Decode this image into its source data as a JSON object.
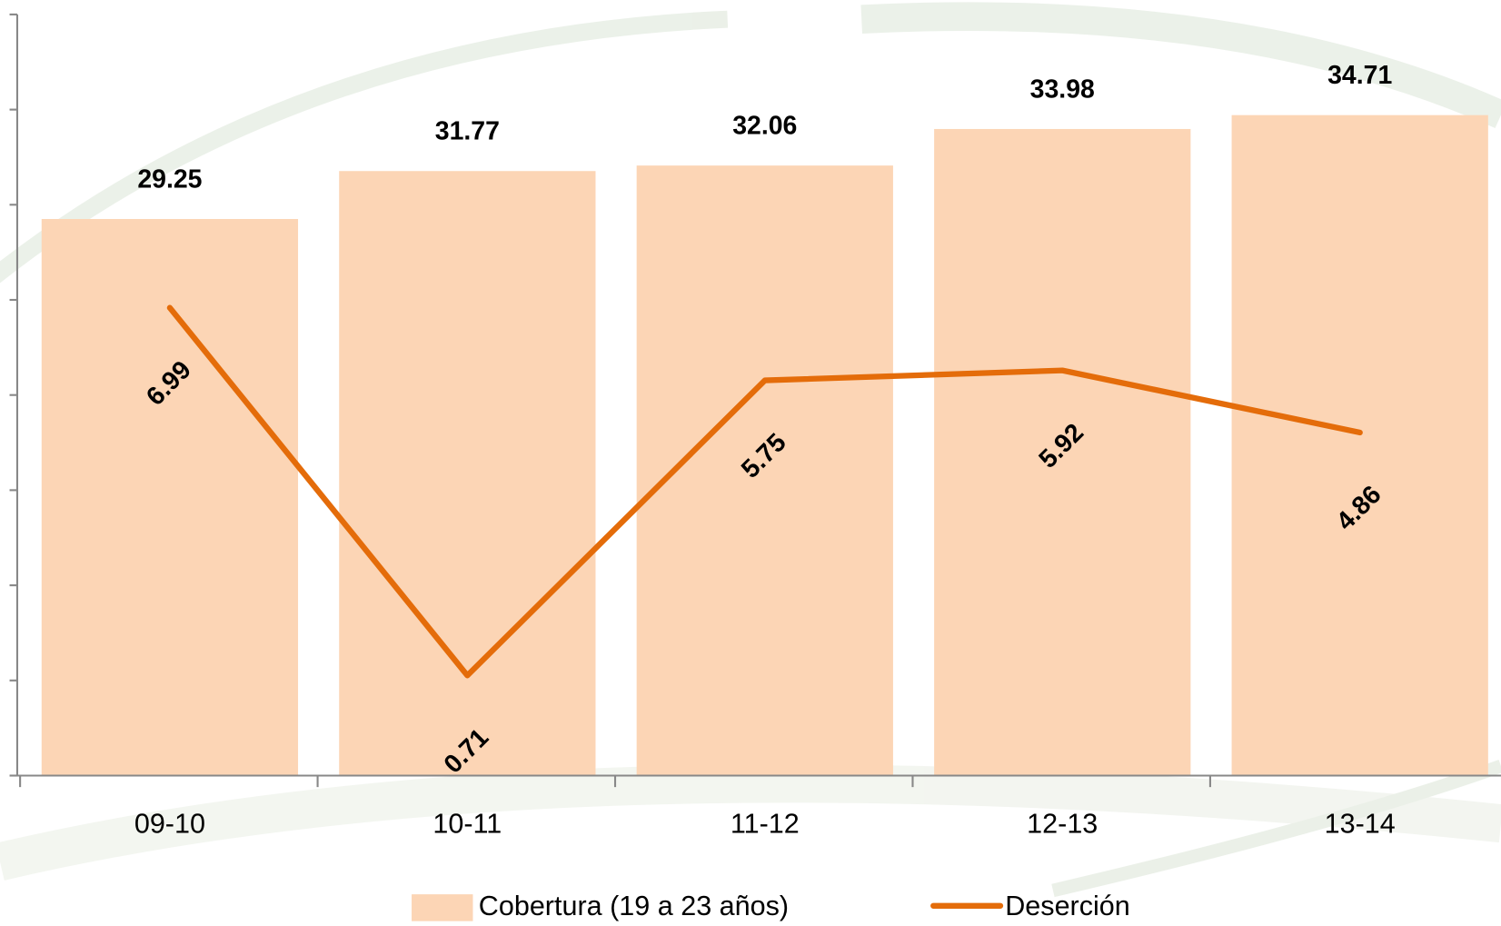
{
  "chart_data": {
    "type": "bar_line",
    "categories": [
      "09-10",
      "10-11",
      "11-12",
      "12-13",
      "13-14"
    ],
    "series": [
      {
        "name": "Cobertura (19 a 23 años)",
        "type": "bar",
        "color": "#fcd5b5",
        "values": [
          29.25,
          31.77,
          32.06,
          33.98,
          34.71
        ]
      },
      {
        "name": "Deserción",
        "type": "line",
        "axis": "y2",
        "color": "#e46c0a",
        "values": [
          6.99,
          0.71,
          5.75,
          5.92,
          4.86
        ]
      }
    ],
    "ylim": [
      0,
      40
    ],
    "yticks": [
      0,
      5,
      10,
      15,
      20,
      25,
      30,
      35,
      40
    ],
    "y2lim": [
      -1,
      12
    ]
  }
}
